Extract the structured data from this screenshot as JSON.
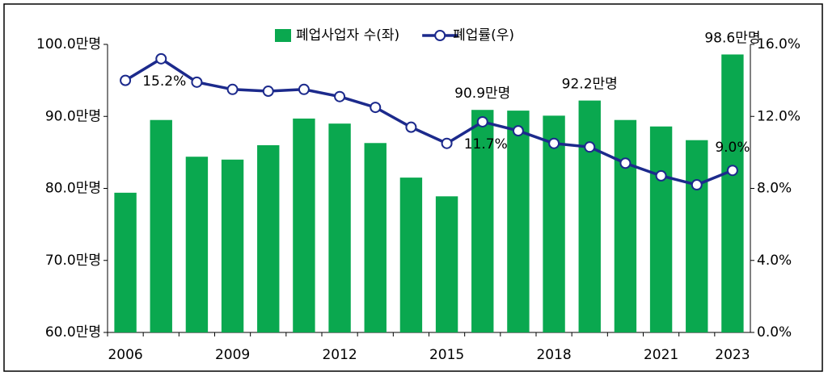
{
  "chart_data": {
    "type": "bar_line",
    "categories": [
      "2006",
      null,
      null,
      "2009",
      null,
      null,
      "2012",
      null,
      null,
      "2015",
      null,
      null,
      "2018",
      null,
      null,
      "2021",
      null,
      "2023"
    ],
    "series": [
      {
        "name": "폐업사업자 수(좌)",
        "type": "bar",
        "color": "#0aa84f",
        "axis": "y",
        "values": [
          79.4,
          89.5,
          84.4,
          84.0,
          86.0,
          89.7,
          89.0,
          86.3,
          81.5,
          78.9,
          90.9,
          90.8,
          90.1,
          92.2,
          89.5,
          88.6,
          86.7,
          98.6
        ],
        "value_labels": [
          null,
          null,
          null,
          null,
          null,
          null,
          null,
          null,
          null,
          null,
          "90.9만명",
          null,
          null,
          "92.2만명",
          null,
          null,
          null,
          "98.6만명"
        ]
      },
      {
        "name": "폐업률(우)",
        "type": "line",
        "color": "#1c2a8c",
        "axis": "y2",
        "values": [
          14.0,
          15.2,
          13.9,
          13.5,
          13.4,
          13.5,
          13.1,
          12.5,
          11.4,
          10.5,
          11.7,
          11.2,
          10.5,
          10.3,
          9.4,
          8.7,
          8.2,
          9.0
        ],
        "value_labels": [
          null,
          "15.2%",
          null,
          null,
          null,
          null,
          null,
          null,
          null,
          null,
          "11.7%",
          null,
          null,
          null,
          null,
          null,
          null,
          "9.0%"
        ]
      }
    ],
    "ylim": [
      60,
      100
    ],
    "yticks": [
      {
        "value": 60,
        "label": "60.0만명"
      },
      {
        "value": 70,
        "label": "70.0만명"
      },
      {
        "value": 80,
        "label": "80.0만명"
      },
      {
        "value": 90,
        "label": "90.0만명"
      },
      {
        "value": 100,
        "label": "100.0만명"
      }
    ],
    "y2lim": [
      0,
      16
    ],
    "y2ticks": [
      {
        "value": 0,
        "label": "0.0%"
      },
      {
        "value": 4,
        "label": "4.0%"
      },
      {
        "value": 8,
        "label": "8.0%"
      },
      {
        "value": 12,
        "label": "12.0%"
      },
      {
        "value": 16,
        "label": "16.0%"
      }
    ],
    "grid": false,
    "legend": "top"
  }
}
